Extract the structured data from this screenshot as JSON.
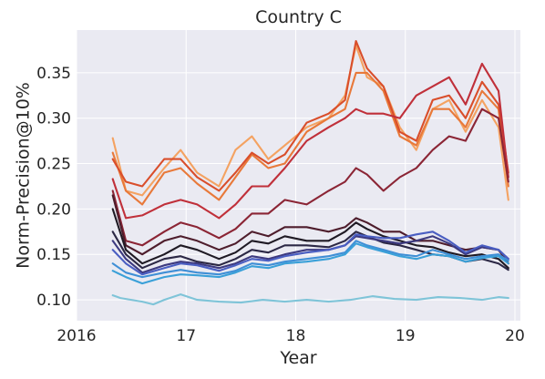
{
  "chart_data": {
    "type": "line",
    "title": "Country C",
    "xlabel": "Year",
    "ylabel": "Norm-Precision@10%",
    "xlim": [
      2016.0,
      2020.05
    ],
    "ylim": [
      0.077,
      0.397
    ],
    "xticks": [
      {
        "value": 2016,
        "label": "2016"
      },
      {
        "value": 2017,
        "label": "17"
      },
      {
        "value": 2018,
        "label": "18"
      },
      {
        "value": 2019,
        "label": "19"
      },
      {
        "value": 2020,
        "label": "20"
      }
    ],
    "yticks": [
      {
        "value": 0.1,
        "label": "0.10"
      },
      {
        "value": 0.15,
        "label": "0.15"
      },
      {
        "value": 0.2,
        "label": "0.20"
      },
      {
        "value": 0.25,
        "label": "0.25"
      },
      {
        "value": 0.3,
        "label": "0.30"
      },
      {
        "value": 0.35,
        "label": "0.35"
      }
    ],
    "grid": true,
    "background": "#eaeaf2",
    "series": [
      {
        "color": "#f4a261",
        "x": [
          2016.33,
          2016.45,
          2016.6,
          2016.8,
          2016.95,
          2017.1,
          2017.3,
          2017.45,
          2017.6,
          2017.75,
          2017.9,
          2018.1,
          2018.3,
          2018.45,
          2018.55,
          2018.65,
          2018.8,
          2018.95,
          2019.1,
          2019.25,
          2019.4,
          2019.55,
          2019.7,
          2019.85,
          2019.94
        ],
        "y": [
          0.278,
          0.22,
          0.215,
          0.245,
          0.265,
          0.24,
          0.225,
          0.265,
          0.28,
          0.255,
          0.27,
          0.29,
          0.3,
          0.325,
          0.38,
          0.345,
          0.335,
          0.29,
          0.265,
          0.31,
          0.32,
          0.285,
          0.32,
          0.29,
          0.21
        ]
      },
      {
        "color": "#e8793a",
        "x": [
          2016.33,
          2016.45,
          2016.6,
          2016.8,
          2016.95,
          2017.1,
          2017.3,
          2017.45,
          2017.6,
          2017.75,
          2017.9,
          2018.1,
          2018.3,
          2018.45,
          2018.55,
          2018.65,
          2018.8,
          2018.95,
          2019.1,
          2019.25,
          2019.4,
          2019.55,
          2019.7,
          2019.85,
          2019.94
        ],
        "y": [
          0.262,
          0.22,
          0.205,
          0.24,
          0.245,
          0.228,
          0.21,
          0.235,
          0.26,
          0.245,
          0.25,
          0.285,
          0.3,
          0.31,
          0.35,
          0.35,
          0.33,
          0.28,
          0.27,
          0.31,
          0.31,
          0.29,
          0.33,
          0.31,
          0.225
        ]
      },
      {
        "color": "#d94e2b",
        "x": [
          2016.33,
          2016.45,
          2016.6,
          2016.8,
          2016.95,
          2017.1,
          2017.3,
          2017.45,
          2017.6,
          2017.75,
          2017.9,
          2018.1,
          2018.3,
          2018.45,
          2018.55,
          2018.65,
          2018.8,
          2018.95,
          2019.1,
          2019.25,
          2019.4,
          2019.55,
          2019.7,
          2019.85,
          2019.94
        ],
        "y": [
          0.255,
          0.23,
          0.225,
          0.255,
          0.255,
          0.235,
          0.22,
          0.24,
          0.262,
          0.25,
          0.26,
          0.295,
          0.305,
          0.32,
          0.385,
          0.355,
          0.335,
          0.285,
          0.275,
          0.32,
          0.325,
          0.3,
          0.34,
          0.315,
          0.24
        ]
      },
      {
        "color": "#c0303a",
        "x": [
          2016.33,
          2016.45,
          2016.6,
          2016.8,
          2016.95,
          2017.1,
          2017.3,
          2017.45,
          2017.6,
          2017.75,
          2017.9,
          2018.1,
          2018.3,
          2018.45,
          2018.55,
          2018.65,
          2018.8,
          2018.95,
          2019.1,
          2019.25,
          2019.4,
          2019.55,
          2019.7,
          2019.85,
          2019.94
        ],
        "y": [
          0.233,
          0.19,
          0.193,
          0.205,
          0.21,
          0.205,
          0.19,
          0.205,
          0.225,
          0.225,
          0.245,
          0.275,
          0.29,
          0.3,
          0.31,
          0.305,
          0.305,
          0.3,
          0.325,
          0.335,
          0.345,
          0.315,
          0.36,
          0.33,
          0.235
        ]
      },
      {
        "color": "#8b2535",
        "x": [
          2016.33,
          2016.45,
          2016.6,
          2016.8,
          2016.95,
          2017.1,
          2017.3,
          2017.45,
          2017.6,
          2017.75,
          2017.9,
          2018.1,
          2018.3,
          2018.45,
          2018.55,
          2018.65,
          2018.8,
          2018.95,
          2019.1,
          2019.25,
          2019.4,
          2019.55,
          2019.7,
          2019.85,
          2019.94
        ],
        "y": [
          0.22,
          0.165,
          0.16,
          0.175,
          0.185,
          0.18,
          0.168,
          0.178,
          0.195,
          0.195,
          0.21,
          0.205,
          0.22,
          0.23,
          0.245,
          0.238,
          0.22,
          0.235,
          0.245,
          0.265,
          0.28,
          0.275,
          0.31,
          0.3,
          0.23
        ]
      },
      {
        "color": "#4e1d2c",
        "x": [
          2016.33,
          2016.45,
          2016.6,
          2016.8,
          2016.95,
          2017.1,
          2017.3,
          2017.45,
          2017.6,
          2017.75,
          2017.9,
          2018.1,
          2018.3,
          2018.45,
          2018.55,
          2018.65,
          2018.8,
          2018.95,
          2019.1,
          2019.25,
          2019.4,
          2019.55,
          2019.7,
          2019.85,
          2019.94
        ],
        "y": [
          0.215,
          0.16,
          0.15,
          0.165,
          0.17,
          0.165,
          0.155,
          0.162,
          0.175,
          0.17,
          0.18,
          0.18,
          0.175,
          0.18,
          0.19,
          0.185,
          0.175,
          0.175,
          0.165,
          0.165,
          0.16,
          0.155,
          0.158,
          0.155,
          0.14
        ]
      },
      {
        "color": "#1f1a24",
        "x": [
          2016.33,
          2016.45,
          2016.6,
          2016.8,
          2016.95,
          2017.1,
          2017.3,
          2017.45,
          2017.6,
          2017.75,
          2017.9,
          2018.1,
          2018.3,
          2018.45,
          2018.55,
          2018.65,
          2018.8,
          2018.95,
          2019.1,
          2019.25,
          2019.4,
          2019.55,
          2019.7,
          2019.85,
          2019.94
        ],
        "y": [
          0.2,
          0.155,
          0.14,
          0.15,
          0.16,
          0.155,
          0.145,
          0.152,
          0.165,
          0.162,
          0.17,
          0.165,
          0.165,
          0.175,
          0.185,
          0.178,
          0.17,
          0.165,
          0.16,
          0.158,
          0.152,
          0.148,
          0.15,
          0.145,
          0.135
        ]
      },
      {
        "color": "#2c2845",
        "x": [
          2016.33,
          2016.45,
          2016.6,
          2016.8,
          2016.95,
          2017.1,
          2017.3,
          2017.45,
          2017.6,
          2017.75,
          2017.9,
          2018.1,
          2018.3,
          2018.45,
          2018.55,
          2018.65,
          2018.8,
          2018.95,
          2019.1,
          2019.25,
          2019.4,
          2019.55,
          2019.7,
          2019.85,
          2019.94
        ],
        "y": [
          0.175,
          0.15,
          0.135,
          0.145,
          0.148,
          0.142,
          0.138,
          0.145,
          0.155,
          0.152,
          0.16,
          0.16,
          0.158,
          0.165,
          0.175,
          0.17,
          0.163,
          0.16,
          0.155,
          0.15,
          0.148,
          0.142,
          0.145,
          0.14,
          0.133
        ]
      },
      {
        "color": "#3d3a80",
        "x": [
          2016.33,
          2016.45,
          2016.6,
          2016.8,
          2016.95,
          2017.1,
          2017.3,
          2017.45,
          2017.6,
          2017.75,
          2017.9,
          2018.1,
          2018.3,
          2018.45,
          2018.55,
          2018.65,
          2018.8,
          2018.95,
          2019.1,
          2019.25,
          2019.4,
          2019.55,
          2019.7,
          2019.85,
          2019.94
        ],
        "y": [
          0.165,
          0.145,
          0.13,
          0.138,
          0.142,
          0.14,
          0.135,
          0.14,
          0.148,
          0.145,
          0.15,
          0.155,
          0.155,
          0.16,
          0.17,
          0.168,
          0.165,
          0.162,
          0.165,
          0.17,
          0.162,
          0.15,
          0.158,
          0.155,
          0.145
        ]
      },
      {
        "color": "#4a5ec2",
        "x": [
          2016.33,
          2016.45,
          2016.6,
          2016.8,
          2016.95,
          2017.1,
          2017.3,
          2017.45,
          2017.6,
          2017.75,
          2017.9,
          2018.1,
          2018.3,
          2018.45,
          2018.55,
          2018.65,
          2018.8,
          2018.95,
          2019.1,
          2019.25,
          2019.4,
          2019.55,
          2019.7,
          2019.85,
          2019.94
        ],
        "y": [
          0.155,
          0.14,
          0.128,
          0.135,
          0.14,
          0.138,
          0.132,
          0.138,
          0.145,
          0.143,
          0.148,
          0.152,
          0.155,
          0.16,
          0.172,
          0.17,
          0.168,
          0.168,
          0.172,
          0.175,
          0.165,
          0.152,
          0.16,
          0.155,
          0.145
        ]
      },
      {
        "color": "#3f8fd6",
        "x": [
          2016.33,
          2016.45,
          2016.6,
          2016.8,
          2016.95,
          2017.1,
          2017.3,
          2017.45,
          2017.6,
          2017.75,
          2017.9,
          2018.1,
          2018.3,
          2018.45,
          2018.55,
          2018.65,
          2018.8,
          2018.95,
          2019.1,
          2019.25,
          2019.4,
          2019.55,
          2019.7,
          2019.85,
          2019.94
        ],
        "y": [
          0.14,
          0.13,
          0.125,
          0.13,
          0.133,
          0.13,
          0.128,
          0.132,
          0.14,
          0.138,
          0.142,
          0.145,
          0.148,
          0.152,
          0.165,
          0.16,
          0.155,
          0.15,
          0.148,
          0.155,
          0.15,
          0.145,
          0.148,
          0.15,
          0.143
        ]
      },
      {
        "color": "#3aa0d8",
        "x": [
          2016.33,
          2016.45,
          2016.6,
          2016.8,
          2016.95,
          2017.1,
          2017.3,
          2017.45,
          2017.6,
          2017.75,
          2017.9,
          2018.1,
          2018.3,
          2018.45,
          2018.55,
          2018.65,
          2018.8,
          2018.95,
          2019.1,
          2019.25,
          2019.4,
          2019.55,
          2019.7,
          2019.85,
          2019.94
        ],
        "y": [
          0.132,
          0.125,
          0.118,
          0.125,
          0.128,
          0.127,
          0.125,
          0.13,
          0.137,
          0.135,
          0.14,
          0.142,
          0.145,
          0.15,
          0.162,
          0.158,
          0.153,
          0.148,
          0.145,
          0.15,
          0.148,
          0.142,
          0.146,
          0.148,
          0.14
        ]
      },
      {
        "color": "#7fc4d8",
        "x": [
          2016.33,
          2016.4,
          2016.5,
          2016.6,
          2016.7,
          2016.8,
          2016.95,
          2017.1,
          2017.3,
          2017.5,
          2017.7,
          2017.9,
          2018.1,
          2018.3,
          2018.5,
          2018.7,
          2018.9,
          2019.1,
          2019.3,
          2019.5,
          2019.7,
          2019.85,
          2019.94
        ],
        "y": [
          0.105,
          0.102,
          0.1,
          0.098,
          0.095,
          0.1,
          0.106,
          0.1,
          0.098,
          0.097,
          0.1,
          0.098,
          0.1,
          0.098,
          0.1,
          0.104,
          0.101,
          0.1,
          0.103,
          0.102,
          0.1,
          0.103,
          0.102
        ]
      }
    ]
  }
}
